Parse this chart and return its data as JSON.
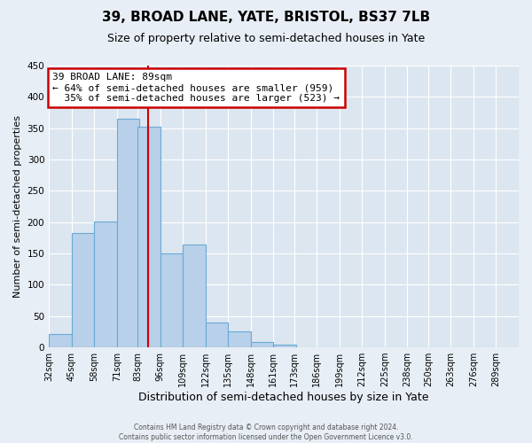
{
  "title": "39, BROAD LANE, YATE, BRISTOL, BS37 7LB",
  "subtitle": "Size of property relative to semi-detached houses in Yate",
  "xlabel": "Distribution of semi-detached houses by size in Yate",
  "ylabel": "Number of semi-detached properties",
  "footer_line1": "Contains HM Land Registry data © Crown copyright and database right 2024.",
  "footer_line2": "Contains public sector information licensed under the Open Government Licence v3.0.",
  "bin_labels": [
    "32sqm",
    "45sqm",
    "58sqm",
    "71sqm",
    "83sqm",
    "96sqm",
    "109sqm",
    "122sqm",
    "135sqm",
    "148sqm",
    "161sqm",
    "173sqm",
    "186sqm",
    "199sqm",
    "212sqm",
    "225sqm",
    "238sqm",
    "250sqm",
    "263sqm",
    "276sqm",
    "289sqm"
  ],
  "bin_edges": [
    32,
    45,
    58,
    71,
    83,
    96,
    109,
    122,
    135,
    148,
    161,
    173,
    186,
    199,
    212,
    225,
    238,
    250,
    263,
    276,
    289
  ],
  "bar_heights": [
    22,
    183,
    201,
    365,
    352,
    150,
    164,
    40,
    25,
    9,
    5,
    0,
    0,
    0,
    0,
    0,
    0,
    0,
    0,
    0
  ],
  "property_size": 89,
  "property_label": "39 BROAD LANE: 89sqm",
  "pct_smaller": 64,
  "count_smaller": 959,
  "pct_larger": 35,
  "count_larger": 523,
  "bar_color": "#b8d0ea",
  "bar_edge_color": "#6aaad4",
  "property_line_color": "#cc0000",
  "annotation_box_color": "#cc0000",
  "ylim": [
    0,
    450
  ],
  "yticks": [
    0,
    50,
    100,
    150,
    200,
    250,
    300,
    350,
    400,
    450
  ],
  "bg_color": "#e8eef5",
  "plot_bg_color": "#dce6f0",
  "grid_color": "#ffffff",
  "title_fontsize": 11,
  "subtitle_fontsize": 9,
  "xlabel_fontsize": 9,
  "ylabel_fontsize": 8,
  "tick_fontsize": 7,
  "footer_fontsize": 5.5
}
